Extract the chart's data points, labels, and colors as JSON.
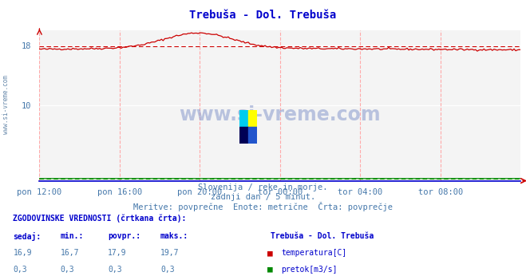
{
  "title_display": "Trebuša - Dol. Trebuša",
  "bg_color": "#ffffff",
  "plot_bg_color": "#f4f4f4",
  "grid_color_h": "#ffffff",
  "grid_color_v": "#ffcccc",
  "x_labels": [
    "pon 12:00",
    "pon 16:00",
    "pon 20:00",
    "tor 00:00",
    "tor 04:00",
    "tor 08:00"
  ],
  "x_ticks": [
    0,
    48,
    96,
    144,
    192,
    240
  ],
  "x_max": 288,
  "y_min": 0,
  "y_max": 20,
  "subtitle1": "Slovenija / reke in morje.",
  "subtitle2": "zadnji dan / 5 minut.",
  "subtitle3": "Meritve: povprečne  Enote: metrične  Črta: povprečje",
  "table_header": "ZGODOVINSKE VREDNOSTI (črtkana črta):",
  "col_headers": [
    "sedaj:",
    "min.:",
    "povpr.:",
    "maks.:"
  ],
  "row1_vals": [
    "16,9",
    "16,7",
    "17,9",
    "19,7"
  ],
  "row2_vals": [
    "0,3",
    "0,3",
    "0,3",
    "0,3"
  ],
  "row1_label": "temperatura[C]",
  "row2_label": "pretok[m3/s]",
  "station_label": "Trebuša - Dol. Trebuša",
  "temp_color": "#cc0000",
  "pretok_color": "#008800",
  "axis_color": "#0000cc",
  "text_color": "#4477aa",
  "title_color": "#0000cc",
  "sidebar_color": "#6688aa",
  "watermark_color": "#7799bb"
}
